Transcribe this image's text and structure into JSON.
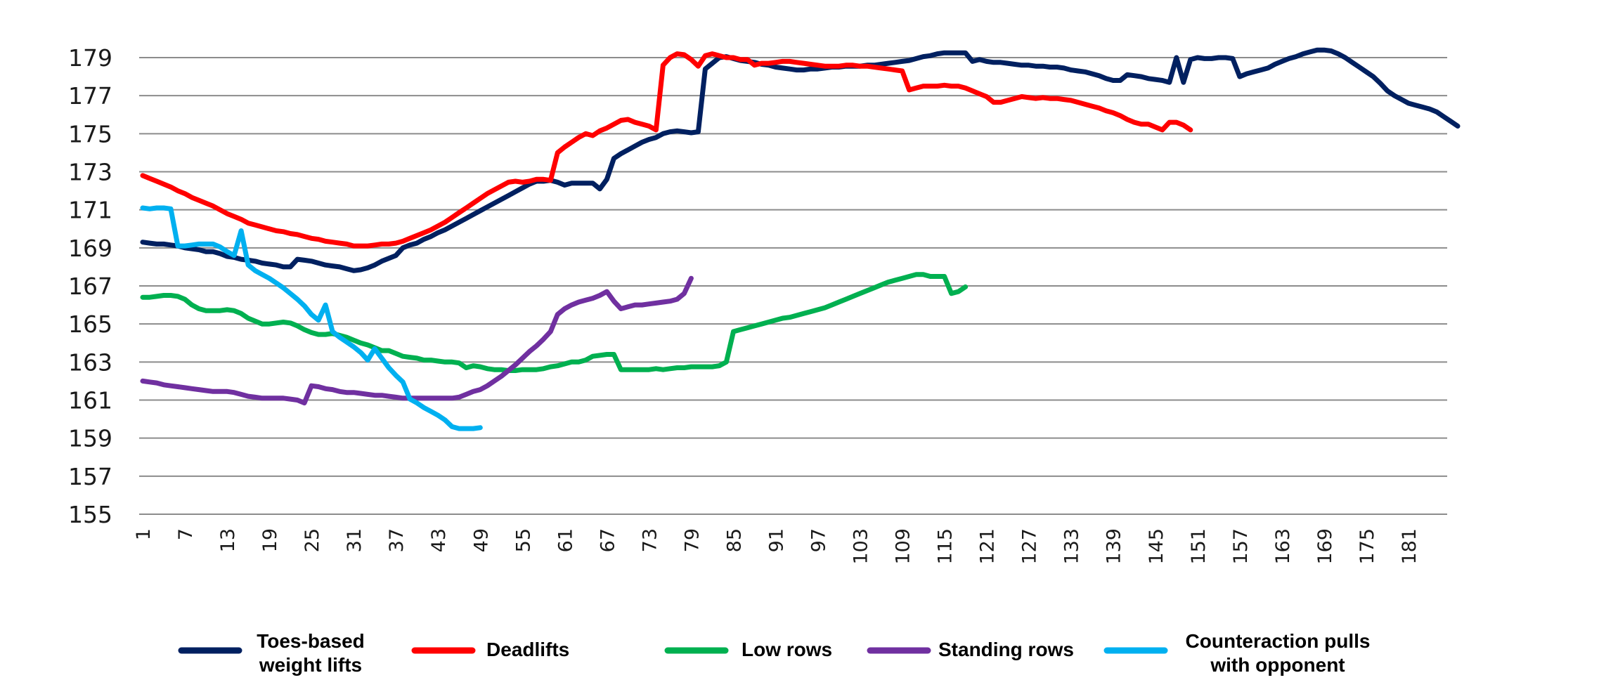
{
  "chart_data": {
    "type": "line",
    "title": "",
    "xlabel": "",
    "ylabel": "",
    "ylim": [
      155,
      179
    ],
    "yticks": [
      "155",
      "157",
      "159",
      "161",
      "163",
      "165",
      "167",
      "169",
      "171",
      "173",
      "175",
      "177",
      "179"
    ],
    "xtick_labels": [
      "1",
      "7",
      "13",
      "19",
      "25",
      "31",
      "37",
      "43",
      "49",
      "55",
      "61",
      "67",
      "73",
      "79",
      "85",
      "91",
      "97",
      "103",
      "109",
      "115",
      "121",
      "127",
      "133",
      "139",
      "145",
      "151",
      "157",
      "163",
      "169",
      "175",
      "181"
    ],
    "x_count": 186,
    "grid": "horizontal",
    "legend_position": "bottom",
    "series": [
      {
        "name": "Toes-based weight lifts",
        "legend_lines": [
          "Toes-based",
          "weight lifts"
        ],
        "color": "#002060",
        "values": [
          169.3,
          169.25,
          169.2,
          169.2,
          169.15,
          169.1,
          169.0,
          168.95,
          168.9,
          168.8,
          168.8,
          168.7,
          168.55,
          168.5,
          168.4,
          168.35,
          168.3,
          168.2,
          168.15,
          168.1,
          168.0,
          168.0,
          168.4,
          168.35,
          168.3,
          168.2,
          168.1,
          168.05,
          168.0,
          167.9,
          167.8,
          167.85,
          167.95,
          168.1,
          168.3,
          168.45,
          168.6,
          169.0,
          169.15,
          169.25,
          169.45,
          169.6,
          169.8,
          169.95,
          170.15,
          170.35,
          170.55,
          170.75,
          170.95,
          171.15,
          171.35,
          171.55,
          171.75,
          171.95,
          172.15,
          172.35,
          172.5,
          172.5,
          172.55,
          172.45,
          172.3,
          172.4,
          172.4,
          172.4,
          172.4,
          172.1,
          172.6,
          173.7,
          173.95,
          174.15,
          174.35,
          174.55,
          174.7,
          174.8,
          175.0,
          175.1,
          175.15,
          175.1,
          175.05,
          175.1,
          178.4,
          178.7,
          179.0,
          179.05,
          178.95,
          178.85,
          178.8,
          178.75,
          178.65,
          178.6,
          178.5,
          178.45,
          178.4,
          178.35,
          178.35,
          178.4,
          178.4,
          178.45,
          178.5,
          178.5,
          178.55,
          178.55,
          178.55,
          178.6,
          178.6,
          178.65,
          178.7,
          178.75,
          178.8,
          178.85,
          178.95,
          179.05,
          179.1,
          179.2,
          179.25,
          179.25,
          179.25,
          179.25,
          178.8,
          178.9,
          178.8,
          178.75,
          178.75,
          178.7,
          178.65,
          178.6,
          178.6,
          178.55,
          178.55,
          178.5,
          178.5,
          178.45,
          178.35,
          178.3,
          178.25,
          178.15,
          178.05,
          177.9,
          177.8,
          177.8,
          178.1,
          178.05,
          178.0,
          177.9,
          177.85,
          177.8,
          177.7,
          179.0,
          177.7,
          178.9,
          179.0,
          178.95,
          178.95,
          179.0,
          179.0,
          178.95,
          178.0,
          178.15,
          178.25,
          178.35,
          178.45,
          178.65,
          178.8,
          178.95,
          179.05,
          179.2,
          179.3,
          179.4,
          179.4,
          179.35,
          179.2,
          179.0,
          178.75,
          178.5,
          178.25,
          178.0,
          177.65,
          177.25,
          177.0,
          176.8,
          176.6,
          176.5,
          176.4,
          176.3,
          176.15,
          175.9,
          175.65,
          175.4
        ]
      },
      {
        "name": "Deadlifts",
        "legend_lines": [
          "Deadlifts"
        ],
        "color": "#FF0000",
        "values": [
          172.8,
          172.65,
          172.5,
          172.35,
          172.2,
          172.0,
          171.85,
          171.65,
          171.5,
          171.35,
          171.2,
          171.0,
          170.8,
          170.65,
          170.5,
          170.3,
          170.2,
          170.1,
          170.0,
          169.9,
          169.85,
          169.75,
          169.7,
          169.6,
          169.5,
          169.45,
          169.35,
          169.3,
          169.25,
          169.2,
          169.1,
          169.1,
          169.1,
          169.15,
          169.2,
          169.2,
          169.25,
          169.35,
          169.5,
          169.65,
          169.8,
          169.95,
          170.15,
          170.35,
          170.6,
          170.85,
          171.1,
          171.35,
          171.6,
          171.85,
          172.05,
          172.25,
          172.45,
          172.5,
          172.45,
          172.5,
          172.6,
          172.6,
          172.55,
          174.0,
          174.3,
          174.55,
          174.8,
          175.0,
          174.9,
          175.15,
          175.3,
          175.5,
          175.7,
          175.75,
          175.6,
          175.5,
          175.4,
          175.2,
          178.6,
          179.0,
          179.2,
          179.15,
          178.9,
          178.55,
          179.1,
          179.2,
          179.1,
          179.0,
          179.0,
          178.9,
          178.9,
          178.6,
          178.7,
          178.7,
          178.75,
          178.8,
          178.8,
          178.75,
          178.7,
          178.65,
          178.6,
          178.55,
          178.55,
          178.55,
          178.6,
          178.6,
          178.55,
          178.55,
          178.5,
          178.45,
          178.4,
          178.35,
          178.3,
          177.3,
          177.4,
          177.5,
          177.5,
          177.5,
          177.55,
          177.5,
          177.5,
          177.4,
          177.25,
          177.1,
          176.95,
          176.65,
          176.65,
          176.75,
          176.85,
          176.95,
          176.9,
          176.85,
          176.9,
          176.85,
          176.85,
          176.8,
          176.75,
          176.65,
          176.55,
          176.45,
          176.35,
          176.2,
          176.1,
          175.95,
          175.75,
          175.6,
          175.5,
          175.5,
          175.35,
          175.2,
          175.6,
          175.6,
          175.45,
          175.2,
          null,
          null,
          null,
          null,
          null,
          null,
          null,
          null,
          null,
          null,
          null,
          null,
          null,
          null,
          null,
          null,
          null,
          null,
          null,
          null,
          null,
          null,
          null,
          null,
          null,
          null,
          null,
          null,
          null,
          null,
          null,
          null,
          null,
          null,
          null
        ]
      },
      {
        "name": "Low rows",
        "legend_lines": [
          "Low rows"
        ],
        "color": "#00B050",
        "values": [
          166.4,
          166.4,
          166.45,
          166.5,
          166.5,
          166.45,
          166.3,
          166.0,
          165.8,
          165.7,
          165.7,
          165.7,
          165.75,
          165.7,
          165.55,
          165.3,
          165.15,
          165.0,
          165.0,
          165.05,
          165.1,
          165.05,
          164.9,
          164.7,
          164.55,
          164.45,
          164.45,
          164.5,
          164.4,
          164.3,
          164.15,
          164.0,
          163.9,
          163.75,
          163.6,
          163.6,
          163.45,
          163.3,
          163.25,
          163.2,
          163.1,
          163.1,
          163.05,
          163.0,
          163.0,
          162.95,
          162.7,
          162.8,
          162.75,
          162.65,
          162.6,
          162.6,
          162.55,
          162.55,
          162.6,
          162.6,
          162.6,
          162.65,
          162.75,
          162.8,
          162.9,
          163.0,
          163.0,
          163.1,
          163.3,
          163.35,
          163.4,
          163.4,
          162.6,
          162.6,
          162.6,
          162.6,
          162.6,
          162.65,
          162.6,
          162.65,
          162.7,
          162.7,
          162.75,
          162.75,
          162.75,
          162.75,
          162.8,
          163.0,
          164.6,
          164.7,
          164.8,
          164.9,
          165.0,
          165.1,
          165.2,
          165.3,
          165.35,
          165.45,
          165.55,
          165.65,
          165.75,
          165.85,
          166.0,
          166.15,
          166.3,
          166.45,
          166.6,
          166.75,
          166.9,
          167.05,
          167.2,
          167.3,
          167.4,
          167.5,
          167.6,
          167.6,
          167.5,
          167.5,
          167.5,
          166.6,
          166.7,
          166.95,
          null,
          null,
          null,
          null,
          null,
          null,
          null,
          null,
          null,
          null,
          null,
          null,
          null,
          null,
          null,
          null,
          null,
          null,
          null,
          null,
          null,
          null,
          null,
          null,
          null,
          null,
          null,
          null,
          null,
          null,
          null,
          null,
          null,
          null,
          null,
          null,
          null,
          null,
          null,
          null,
          null,
          null,
          null,
          null,
          null,
          null,
          null,
          null,
          null,
          null,
          null,
          null,
          null,
          null,
          null,
          null,
          null,
          null,
          null,
          null,
          null,
          null,
          null,
          null,
          null,
          null,
          null,
          null
        ]
      },
      {
        "name": "Standing rows",
        "legend_lines": [
          "Standing rows"
        ],
        "color": "#7030A0",
        "values": [
          162.0,
          161.95,
          161.9,
          161.8,
          161.75,
          161.7,
          161.65,
          161.6,
          161.55,
          161.5,
          161.45,
          161.45,
          161.45,
          161.4,
          161.3,
          161.2,
          161.15,
          161.1,
          161.1,
          161.1,
          161.1,
          161.05,
          161.0,
          160.85,
          161.75,
          161.7,
          161.6,
          161.55,
          161.45,
          161.4,
          161.4,
          161.35,
          161.3,
          161.25,
          161.25,
          161.2,
          161.15,
          161.1,
          161.1,
          161.1,
          161.1,
          161.1,
          161.1,
          161.1,
          161.1,
          161.15,
          161.3,
          161.45,
          161.55,
          161.75,
          162.0,
          162.25,
          162.55,
          162.85,
          163.2,
          163.55,
          163.85,
          164.2,
          164.6,
          165.5,
          165.8,
          166.0,
          166.15,
          166.25,
          166.35,
          166.5,
          166.7,
          166.2,
          165.8,
          165.9,
          166.0,
          166.0,
          166.05,
          166.1,
          166.15,
          166.2,
          166.3,
          166.6,
          167.4,
          null,
          null,
          null,
          null,
          null,
          null,
          null,
          null,
          null,
          null,
          null,
          null,
          null,
          null,
          null,
          null,
          null,
          null,
          null,
          null,
          null,
          null,
          null,
          null,
          null,
          null,
          null,
          null,
          null,
          null,
          null,
          null,
          null,
          null,
          null,
          null,
          null,
          null,
          null,
          null,
          null,
          null,
          null,
          null,
          null,
          null,
          null,
          null,
          null,
          null,
          null,
          null,
          null,
          null,
          null,
          null,
          null,
          null,
          null,
          null,
          null,
          null,
          null,
          null,
          null,
          null,
          null,
          null,
          null,
          null,
          null,
          null,
          null,
          null,
          null,
          null,
          null,
          null,
          null,
          null,
          null,
          null,
          null,
          null,
          null,
          null,
          null,
          null,
          null,
          null,
          null,
          null,
          null,
          null,
          null,
          null,
          null,
          null,
          null,
          null,
          null,
          null,
          null,
          null,
          null,
          null,
          null,
          null,
          null,
          null
        ]
      },
      {
        "name": "Counteraction pulls with opponent",
        "legend_lines": [
          "Counteraction pulls",
          "with opponent"
        ],
        "color": "#00B0F0",
        "values": [
          171.1,
          171.05,
          171.1,
          171.1,
          171.05,
          169.1,
          169.1,
          169.15,
          169.2,
          169.2,
          169.2,
          169.05,
          168.8,
          168.6,
          169.9,
          168.1,
          167.8,
          167.6,
          167.4,
          167.15,
          166.9,
          166.6,
          166.3,
          165.95,
          165.5,
          165.2,
          166.0,
          164.6,
          164.3,
          164.05,
          163.8,
          163.5,
          163.1,
          163.7,
          163.2,
          162.7,
          162.3,
          161.95,
          161.05,
          160.85,
          160.6,
          160.4,
          160.2,
          159.95,
          159.6,
          159.5,
          159.5,
          159.5,
          159.55,
          null,
          null,
          null,
          null,
          null,
          null,
          null,
          null,
          null,
          null,
          null,
          null,
          null,
          null,
          null,
          null,
          null,
          null,
          null,
          null,
          null,
          null,
          null,
          null,
          null,
          null,
          null,
          null,
          null,
          null,
          null,
          null,
          null,
          null,
          null,
          null,
          null,
          null,
          null,
          null,
          null,
          null,
          null,
          null,
          null,
          null,
          null,
          null,
          null,
          null,
          null,
          null,
          null,
          null,
          null,
          null,
          null,
          null,
          null,
          null,
          null,
          null,
          null,
          null,
          null,
          null,
          null,
          null,
          null,
          null,
          null,
          null,
          null,
          null,
          null,
          null,
          null,
          null,
          null,
          null,
          null,
          null,
          null,
          null,
          null,
          null,
          null,
          null,
          null,
          null,
          null,
          null,
          null,
          null,
          null,
          null,
          null,
          null,
          null,
          null,
          null,
          null,
          null,
          null,
          null,
          null,
          null,
          null,
          null,
          null,
          null,
          null,
          null,
          null,
          null,
          null,
          null,
          null,
          null,
          null,
          null,
          null,
          null,
          null,
          null,
          null,
          null,
          null,
          null,
          null,
          null,
          null,
          null,
          null,
          null,
          null,
          null,
          null,
          null,
          null
        ]
      }
    ]
  }
}
